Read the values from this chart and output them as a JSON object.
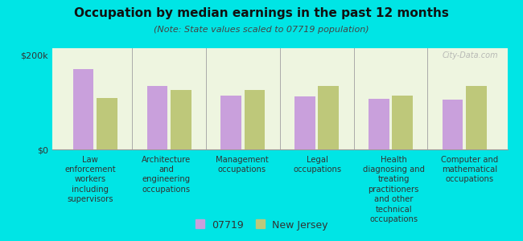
{
  "title": "Occupation by median earnings in the past 12 months",
  "subtitle": "(Note: State values scaled to 07719 population)",
  "background_color": "#00e5e5",
  "plot_bg_color": "#eef5e0",
  "categories": [
    "Law\nenforcement\nworkers\nincluding\nsupervisors",
    "Architecture\nand\nengineering\noccupations",
    "Management\noccupations",
    "Legal\noccupations",
    "Health\ndiagnosing and\ntreating\npractitioners\nand other\ntechnical\noccupations",
    "Computer and\nmathematical\noccupations"
  ],
  "values_07719": [
    170000,
    135000,
    115000,
    112000,
    108000,
    105000
  ],
  "values_nj": [
    110000,
    127000,
    127000,
    135000,
    115000,
    135000
  ],
  "color_07719": "#c9a0dc",
  "color_nj": "#bec87a",
  "ylim": [
    0,
    215000
  ],
  "yticks": [
    0,
    200000
  ],
  "ytick_labels": [
    "$0",
    "$200k"
  ],
  "legend_07719": "07719",
  "legend_nj": "New Jersey",
  "watermark": "City-Data.com"
}
